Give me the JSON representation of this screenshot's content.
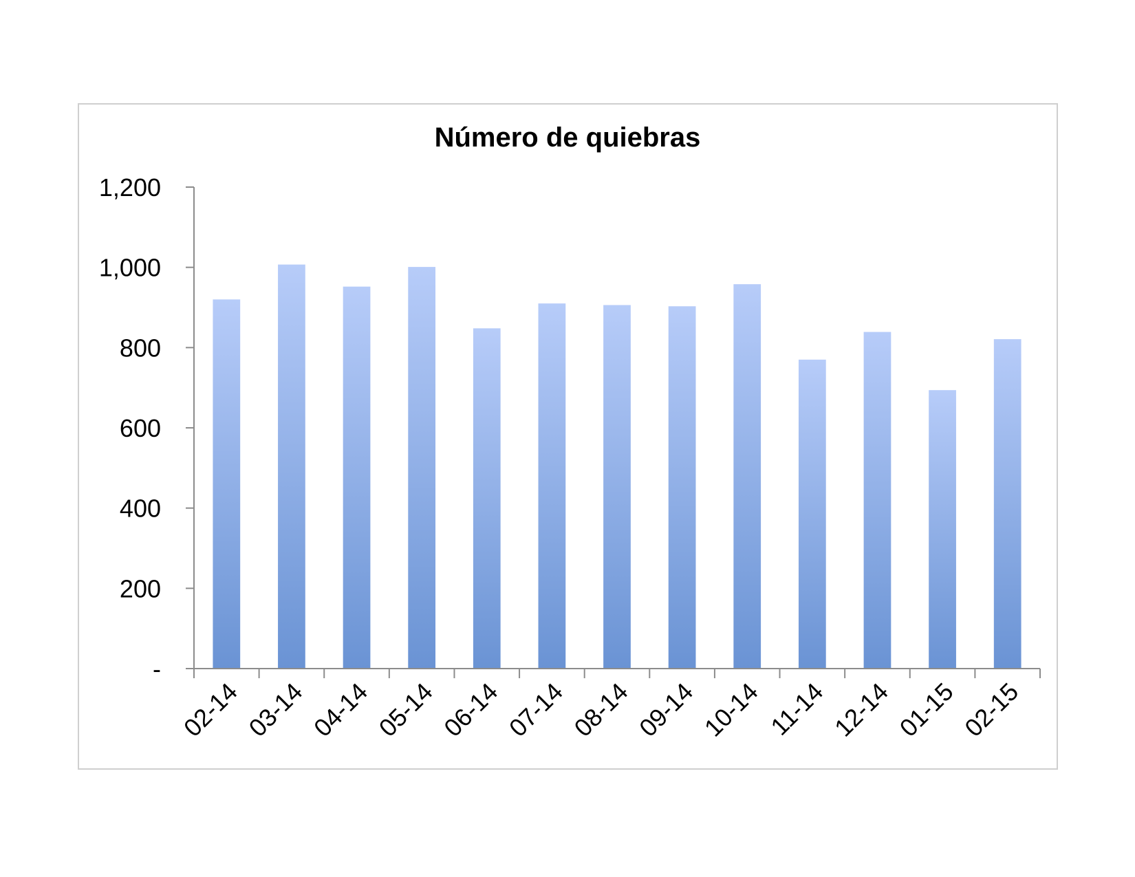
{
  "chart_data": {
    "type": "bar",
    "title": "Número de quiebras",
    "xlabel": "",
    "ylabel": "",
    "categories": [
      "02-14",
      "03-14",
      "04-14",
      "05-14",
      "06-14",
      "07-14",
      "08-14",
      "09-14",
      "10-14",
      "11-14",
      "12-14",
      "01-15",
      "02-15"
    ],
    "values": [
      920,
      1007,
      952,
      1001,
      848,
      910,
      906,
      903,
      958,
      770,
      839,
      694,
      821
    ],
    "ylim": [
      0,
      1200
    ],
    "yticks": [
      0,
      200,
      400,
      600,
      800,
      1000,
      1200
    ],
    "ytick_labels": [
      "-",
      "200",
      "400",
      "600",
      "800",
      "1,000",
      "1,200"
    ],
    "grid": false,
    "legend": "none",
    "colors": {
      "bar_top": "#b7ccf9",
      "bar_bottom": "#6a93d4",
      "axis": "#8c8c8c"
    }
  }
}
